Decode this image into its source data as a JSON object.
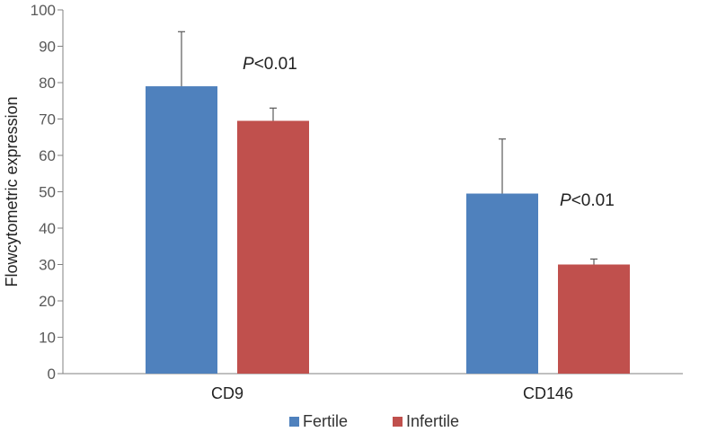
{
  "chart_data": {
    "type": "bar",
    "title": "",
    "xlabel": "",
    "ylabel": "Flowcytometric expression",
    "ylim": [
      0,
      100
    ],
    "yticks": [
      0,
      10,
      20,
      30,
      40,
      50,
      60,
      70,
      80,
      90,
      100
    ],
    "categories": [
      "CD9",
      "CD146"
    ],
    "series": [
      {
        "name": "Fertile",
        "color": "#4F81BD",
        "values": [
          79,
          49.5
        ],
        "errors": [
          15,
          15
        ]
      },
      {
        "name": "Infertile",
        "color": "#C0504D",
        "values": [
          69.5,
          30
        ],
        "errors": [
          3.5,
          1.5
        ]
      }
    ],
    "annotations": [
      {
        "category": "CD9",
        "italic": "P",
        "text": "<0.01"
      },
      {
        "category": "CD146",
        "italic": "P",
        "text": "<0.01"
      }
    ],
    "legend_position": "bottom-center",
    "grid": false
  }
}
